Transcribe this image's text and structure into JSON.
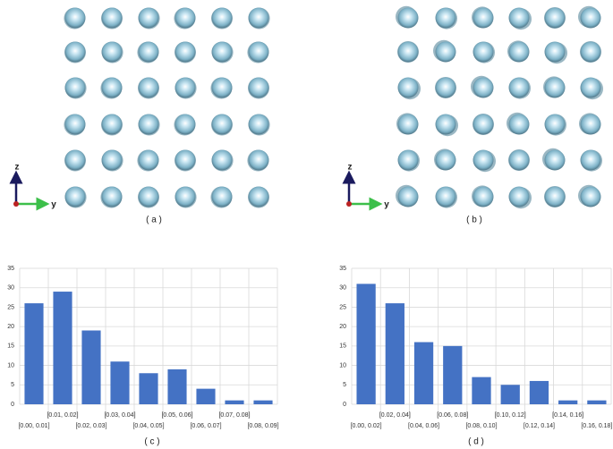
{
  "panels": {
    "a": {
      "label": "( a )",
      "axis_z": "z",
      "axis_y": "y"
    },
    "b": {
      "label": "( b )",
      "axis_z": "z",
      "axis_y": "y"
    },
    "c": {
      "label": "( c )"
    },
    "d": {
      "label": "( d )"
    }
  },
  "chart_data": [
    {
      "type": "bar",
      "categories": [
        "[0.00, 0.01]",
        "[0.01, 0.02]",
        "[0.02, 0.03]",
        "[0.03, 0.04]",
        "[0.04, 0.05]",
        "[0.05, 0.06]",
        "[0.06, 0.07]",
        "[0.07, 0.08]",
        "[0.08, 0.09]"
      ],
      "values": [
        26,
        29,
        19,
        11,
        8,
        9,
        4,
        1,
        1
      ],
      "color": "#4472c4",
      "ylim": [
        0,
        35
      ],
      "yticks": [
        0,
        5,
        10,
        15,
        20,
        25,
        30,
        35
      ],
      "grid": true
    },
    {
      "type": "bar",
      "categories": [
        "[0.00, 0.02]",
        "[0.02, 0.04]",
        "[0.04, 0.06]",
        "[0.06, 0.08]",
        "[0.08, 0.10]",
        "[0.10, 0.12]",
        "[0.12, 0.14]",
        "[0.14, 0.16]",
        "[0.16, 0.18]"
      ],
      "values": [
        31,
        26,
        16,
        15,
        7,
        5,
        6,
        1,
        1
      ],
      "color": "#4472c4",
      "ylim": [
        0,
        35
      ],
      "yticks": [
        0,
        5,
        10,
        15,
        20,
        25,
        30,
        35
      ],
      "grid": true
    }
  ]
}
